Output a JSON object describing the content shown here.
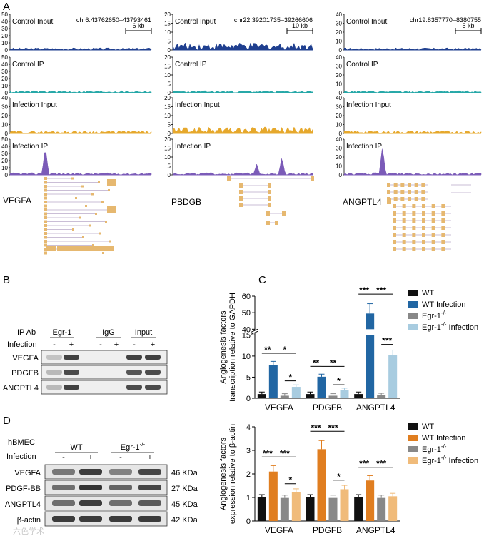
{
  "panel_letters": {
    "a": "A",
    "b": "B",
    "c": "C",
    "d": "D"
  },
  "panel_a": {
    "columns": [
      {
        "gene": "VEGFA",
        "coords": "chr6:43762650–43793461",
        "scale": "6 kb",
        "tracks": [
          {
            "label": "Control Input",
            "ymax": 50,
            "ticks": [
              "0",
              "10",
              "20",
              "30",
              "40",
              "50"
            ],
            "color": "#1f3f8f"
          },
          {
            "label": "Control IP",
            "ymax": 50,
            "ticks": [
              "0",
              "10",
              "20",
              "30",
              "40",
              "50"
            ],
            "color": "#27a8a8"
          },
          {
            "label": "Infection Input",
            "ymax": 40,
            "ticks": [
              "0",
              "10",
              "20",
              "30",
              "40"
            ],
            "color": "#e6a82c"
          },
          {
            "label": "Infection IP",
            "ymax": 50,
            "ticks": [
              "0",
              "10",
              "20",
              "30",
              "40",
              "50"
            ],
            "color": "#7b5bb8"
          }
        ]
      },
      {
        "gene": "PBDGB",
        "coords": "chr22:39201735–39266606",
        "scale": "10 kb",
        "tracks": [
          {
            "label": "Control Input",
            "ymax": 20,
            "ticks": [
              "0",
              "5",
              "10",
              "15",
              "20"
            ],
            "color": "#1f3f8f"
          },
          {
            "label": "Control IP",
            "ymax": 20,
            "ticks": [
              "0",
              "5",
              "10",
              "15",
              "20"
            ],
            "color": "#27a8a8"
          },
          {
            "label": "Infection Input",
            "ymax": 20,
            "ticks": [
              "0",
              "5",
              "10",
              "15",
              "20"
            ],
            "color": "#e6a82c"
          },
          {
            "label": "Infection IP",
            "ymax": 20,
            "ticks": [
              "0",
              "5",
              "10",
              "15",
              "20"
            ],
            "color": "#7b5bb8"
          }
        ]
      },
      {
        "gene": "ANGPTL4",
        "coords": "chr19:8357770–8380755",
        "scale": "5 kb",
        "tracks": [
          {
            "label": "Control Input",
            "ymax": 40,
            "ticks": [
              "0",
              "10",
              "20",
              "30",
              "40"
            ],
            "color": "#1f3f8f"
          },
          {
            "label": "Control IP",
            "ymax": 40,
            "ticks": [
              "0",
              "10",
              "20",
              "30",
              "40"
            ],
            "color": "#27a8a8"
          },
          {
            "label": "Infection Input",
            "ymax": 40,
            "ticks": [
              "0",
              "10",
              "20",
              "30",
              "40"
            ],
            "color": "#e6a82c"
          },
          {
            "label": "Infection IP",
            "ymax": 40,
            "ticks": [
              "0",
              "10",
              "20",
              "30",
              "40"
            ],
            "color": "#7b5bb8"
          }
        ]
      }
    ],
    "gene_model_color": "#e6b870"
  },
  "panel_b": {
    "ip_ab_label": "IP Ab",
    "infection_label": "Infection",
    "groups": [
      "Egr-1",
      "IgG",
      "Input"
    ],
    "signs": [
      "-",
      "+",
      "-",
      "+",
      "-",
      "+"
    ],
    "rows": [
      "VEGFA",
      "PDGFB",
      "ANGPTL4"
    ]
  },
  "panel_d_blot": {
    "cell_label": "hBMEC",
    "infection_label": "Infection",
    "groups": [
      "WT",
      "Egr-1"
    ],
    "group_sup": [
      "",
      "-/-"
    ],
    "signs": [
      "-",
      "+",
      "-",
      "+"
    ],
    "rows": [
      {
        "name": "VEGFA",
        "kda": "46 KDa"
      },
      {
        "name": "PDGF-BB",
        "kda": "27 KDa"
      },
      {
        "name": "ANGPTL4",
        "kda": "45 KDa"
      },
      {
        "name": "β-actin",
        "kda": "42 KDa"
      }
    ]
  },
  "chart_data": [
    {
      "type": "bar",
      "panel": "C",
      "title": "",
      "ylabel": "Angiogenesis factors transcription relative to GAPDH",
      "ylabel_line1": "Angiogenesis factors",
      "ylabel_line2": "transcription relative to GAPDH",
      "categories": [
        "VEGFA",
        "PDGFB",
        "ANGPTL4"
      ],
      "ylim": [
        0,
        60
      ],
      "axis_break": [
        15,
        40
      ],
      "yticks": [
        "0",
        "5",
        "10",
        "15",
        "40",
        "50",
        "60"
      ],
      "series": [
        {
          "name": "WT",
          "sup": "",
          "color": "#111111",
          "values": [
            1.0,
            1.0,
            1.0
          ]
        },
        {
          "name": "WT Infection",
          "sup": "",
          "color": "#2166a3",
          "values": [
            7.8,
            5.1,
            49.5
          ]
        },
        {
          "name": "Egr-1",
          "sup": "-/-",
          "color": "#888888",
          "values": [
            0.6,
            0.6,
            0.7
          ]
        },
        {
          "name": "Egr-1",
          "sup": "-/- Infection",
          "color": "#a8cce0",
          "values": [
            2.7,
            1.9,
            10.2
          ]
        }
      ],
      "significance": [
        {
          "category": "VEGFA",
          "from": 0,
          "to": 1,
          "label": "**"
        },
        {
          "category": "VEGFA",
          "from": 1,
          "to": 3,
          "label": "*"
        },
        {
          "category": "VEGFA",
          "from": 2,
          "to": 3,
          "label": "*"
        },
        {
          "category": "PDGFB",
          "from": 0,
          "to": 1,
          "label": "**"
        },
        {
          "category": "PDGFB",
          "from": 1,
          "to": 3,
          "label": "**"
        },
        {
          "category": "PDGFB",
          "from": 2,
          "to": 3,
          "label": "*"
        },
        {
          "category": "ANGPTL4",
          "from": 0,
          "to": 1,
          "label": "***"
        },
        {
          "category": "ANGPTL4",
          "from": 1,
          "to": 3,
          "label": "***"
        },
        {
          "category": "ANGPTL4",
          "from": 2,
          "to": 3,
          "label": "***"
        }
      ]
    },
    {
      "type": "bar",
      "panel": "D",
      "title": "",
      "ylabel": "Angiogenesis factors expression relative to β-actin",
      "ylabel_line1": "Angiogenesis factors",
      "ylabel_line2": "expression relative to β-actin",
      "categories": [
        "VEGFA",
        "PDGFB",
        "ANGPTL4"
      ],
      "ylim": [
        0,
        4
      ],
      "yticks": [
        "0",
        "1",
        "2",
        "3",
        "4"
      ],
      "series": [
        {
          "name": "WT",
          "sup": "",
          "color": "#111111",
          "values": [
            1.0,
            1.0,
            1.0
          ]
        },
        {
          "name": "WT Infection",
          "sup": "",
          "color": "#e07e20",
          "values": [
            2.1,
            3.05,
            1.72
          ]
        },
        {
          "name": "Egr-1",
          "sup": "-/-",
          "color": "#888888",
          "values": [
            0.98,
            0.98,
            0.98
          ]
        },
        {
          "name": "Egr-1",
          "sup": "-/- Infection",
          "color": "#f0bb7a",
          "values": [
            1.22,
            1.35,
            1.05
          ]
        }
      ],
      "significance": [
        {
          "category": "VEGFA",
          "from": 0,
          "to": 1,
          "label": "***"
        },
        {
          "category": "VEGFA",
          "from": 1,
          "to": 3,
          "label": "***"
        },
        {
          "category": "VEGFA",
          "from": 2,
          "to": 3,
          "label": "*"
        },
        {
          "category": "PDGFB",
          "from": 0,
          "to": 1,
          "label": "***"
        },
        {
          "category": "PDGFB",
          "from": 1,
          "to": 3,
          "label": "***"
        },
        {
          "category": "PDGFB",
          "from": 2,
          "to": 3,
          "label": "*"
        },
        {
          "category": "ANGPTL4",
          "from": 0,
          "to": 1,
          "label": "***"
        },
        {
          "category": "ANGPTL4",
          "from": 1,
          "to": 3,
          "label": "***"
        }
      ]
    }
  ],
  "watermark": "六色学术"
}
